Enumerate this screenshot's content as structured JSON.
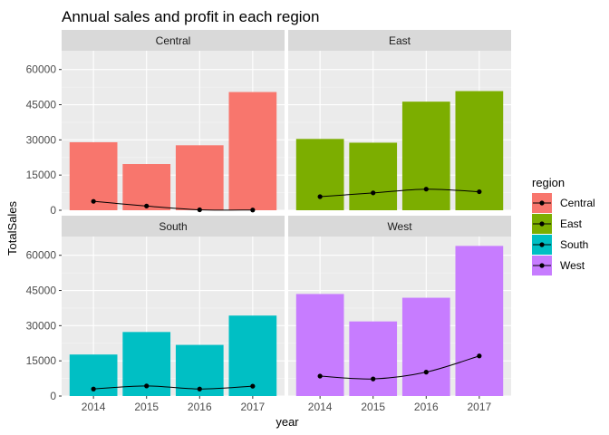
{
  "chart_data": {
    "type": "bar",
    "title": "Annual sales and profit in each region",
    "xlabel": "year",
    "ylabel": "TotalSales",
    "categories": [
      "2014",
      "2015",
      "2016",
      "2017"
    ],
    "ylim": [
      0,
      68000
    ],
    "yticks": [
      0,
      15000,
      30000,
      45000,
      60000
    ],
    "ytick_labels": [
      "0",
      "15000",
      "30000",
      "45000",
      "60000"
    ],
    "grid": true,
    "legend": {
      "title": "region",
      "position": "right"
    },
    "facets": [
      {
        "name": "Central",
        "color": "#F8766D",
        "sales": [
          29000,
          19700,
          27700,
          50400
        ],
        "profit": [
          3800,
          1800,
          200,
          100
        ]
      },
      {
        "name": "East",
        "color": "#7CAE00",
        "sales": [
          30400,
          28800,
          46300,
          50800
        ],
        "profit": [
          5800,
          7400,
          9000,
          7900
        ]
      },
      {
        "name": "South",
        "color": "#00BFC4",
        "sales": [
          17700,
          27300,
          21800,
          34300
        ],
        "profit": [
          3000,
          4300,
          3000,
          4200
        ]
      },
      {
        "name": "West",
        "color": "#C77CFF",
        "sales": [
          43500,
          31800,
          41900,
          64000
        ],
        "profit": [
          8500,
          7300,
          10200,
          17100
        ]
      }
    ]
  }
}
